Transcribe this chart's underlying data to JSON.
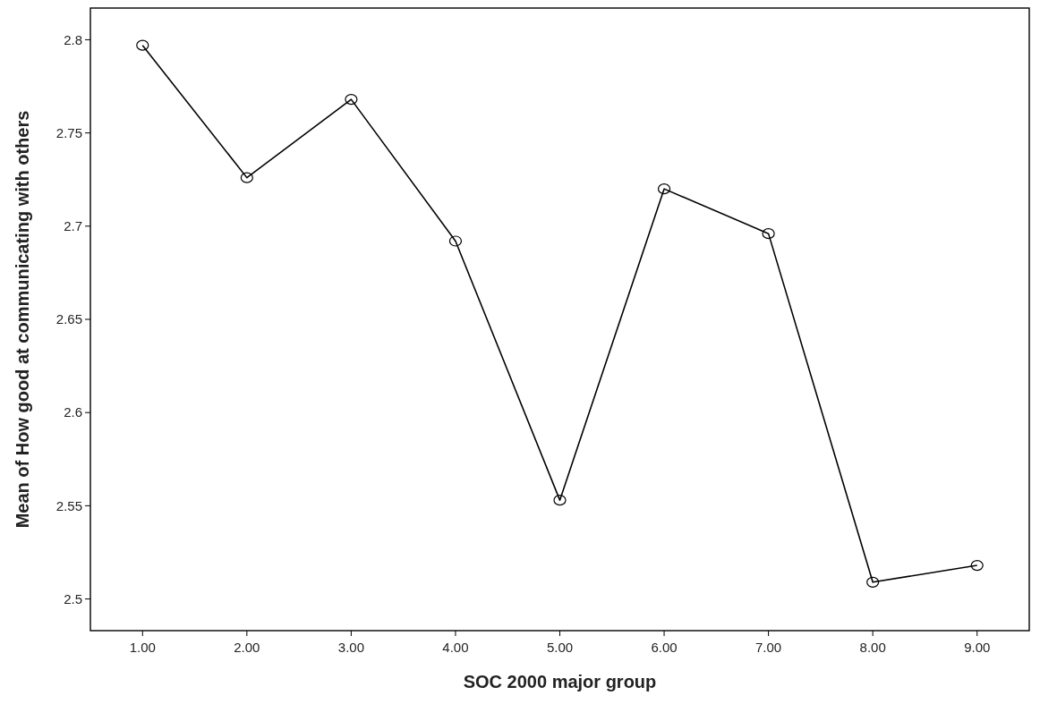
{
  "chart_data": {
    "type": "line",
    "xlabel": "SOC 2000 major group",
    "ylabel": "Mean of How good at communicating with others",
    "categories": [
      "1.00",
      "2.00",
      "3.00",
      "4.00",
      "5.00",
      "6.00",
      "7.00",
      "8.00",
      "9.00"
    ],
    "series": [
      {
        "color": "#000000",
        "values": [
          2.797,
          2.726,
          2.768,
          2.692,
          2.553,
          2.72,
          2.696,
          2.509,
          2.518
        ]
      }
    ],
    "ylim": [
      2.483,
      2.817
    ],
    "yticks": [
      2.5,
      2.55,
      2.6,
      2.65,
      2.7,
      2.75,
      2.8
    ],
    "grid": false,
    "marker": "circle",
    "line_style": "solid"
  }
}
